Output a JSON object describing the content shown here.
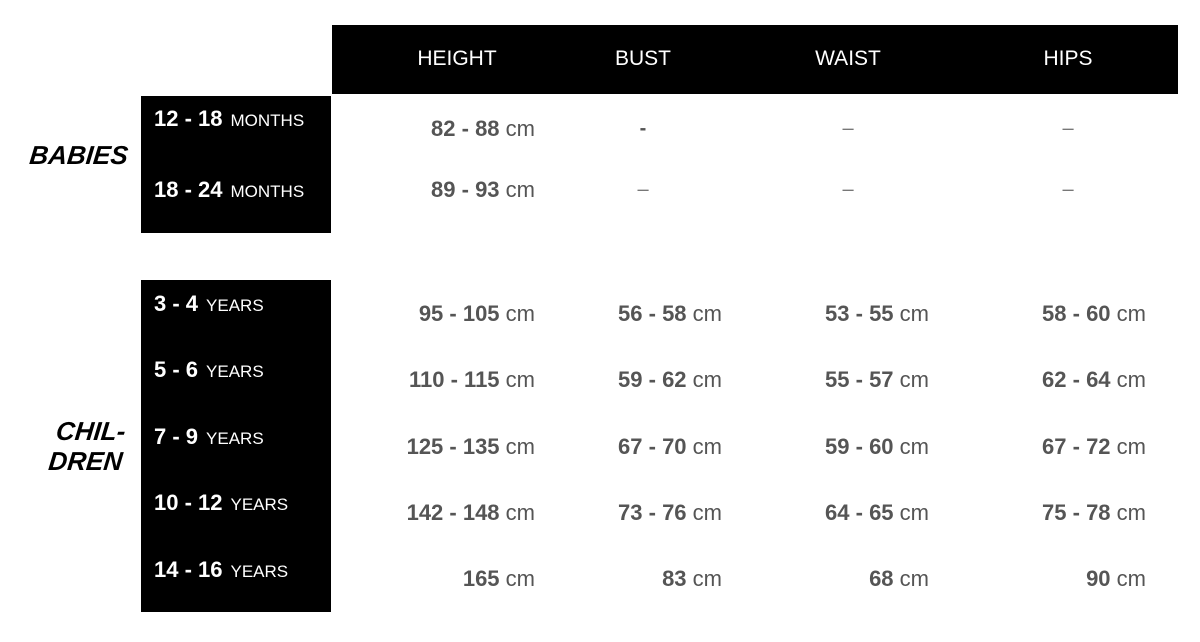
{
  "columns": [
    "HEIGHT",
    "BUST",
    "WAIST",
    "HIPS"
  ],
  "groups": [
    {
      "label": "BABIES",
      "rows": [
        {
          "range": "12 - 18",
          "unit": "MONTHS",
          "values": [
            "82 - 88",
            "-",
            "–",
            "–"
          ]
        },
        {
          "range": "18 - 24",
          "unit": "MONTHS",
          "values": [
            "89 - 93",
            "–",
            "–",
            "–"
          ]
        }
      ]
    },
    {
      "label_lines": [
        "CHIL-",
        "DREN"
      ],
      "rows": [
        {
          "range": "3 - 4",
          "unit": "YEARS",
          "values": [
            "95 - 105",
            "56 - 58",
            "53 - 55",
            "58 - 60"
          ]
        },
        {
          "range": "5 - 6",
          "unit": "YEARS",
          "values": [
            "110 - 115",
            "59 - 62",
            "55 - 57",
            "62 - 64"
          ]
        },
        {
          "range": "7 - 9",
          "unit": "YEARS",
          "values": [
            "125 - 135",
            "67 - 70",
            "59 - 60",
            "67 - 72"
          ]
        },
        {
          "range": "10 - 12",
          "unit": "YEARS",
          "values": [
            "142 - 148",
            "73 - 76",
            "64 - 65",
            "75 - 78"
          ]
        },
        {
          "range": "14 - 16",
          "unit": "YEARS",
          "values": [
            "165",
            "83",
            "68",
            "90"
          ]
        }
      ]
    }
  ],
  "value_unit": "cm"
}
